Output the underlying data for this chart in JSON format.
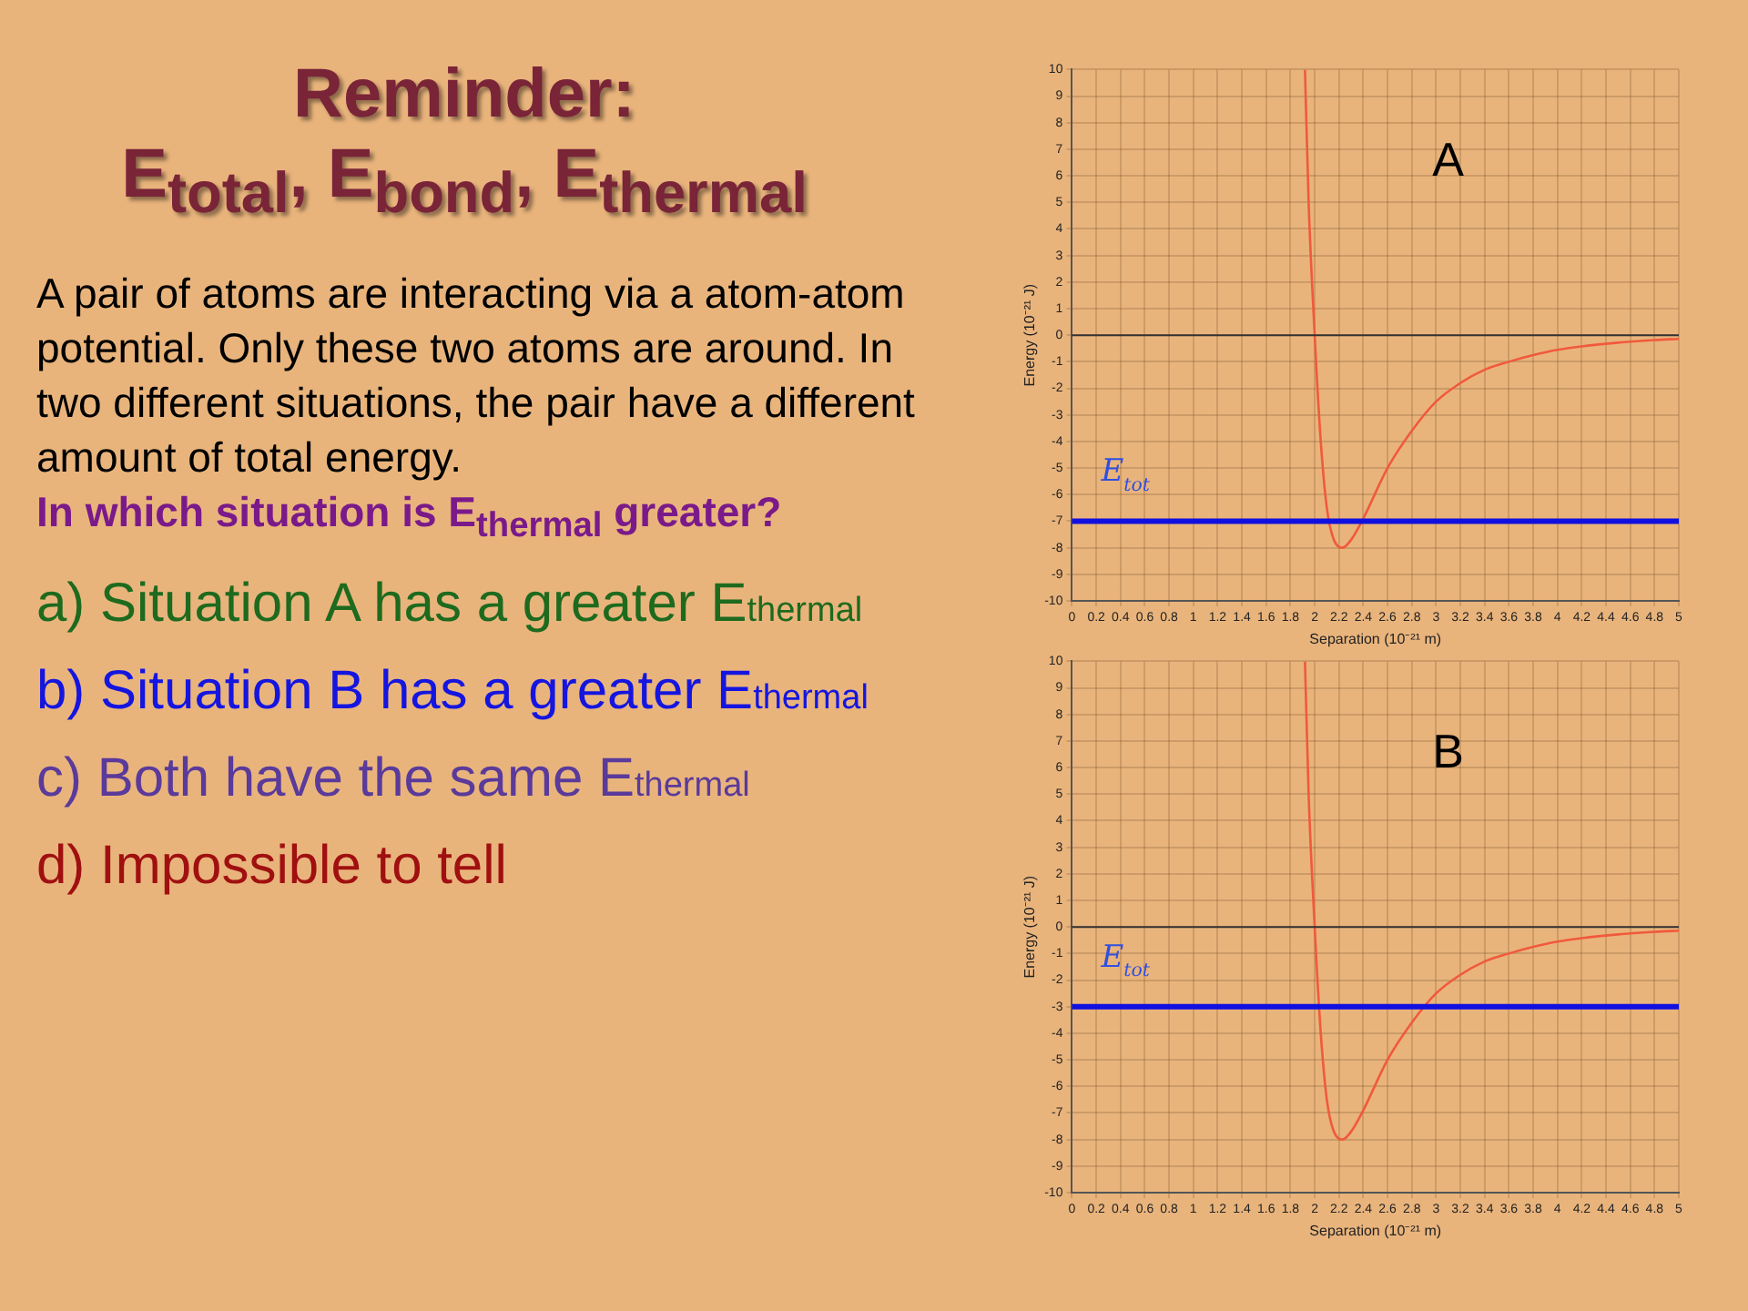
{
  "chart_data": [
    {
      "type": "other",
      "title": "Reminder: E$_{total}$, E$_{bond}$, E$_{thermal}$",
      "annotations": [
        "A pair of atoms are interacting via a atom-atom potential. Only these two atoms are around. In two different situations, the pair have a different amount of total energy.",
        "In which situation is E$_{thermal}$ greater?",
        "a) Situation A has a greater E$_{thermal}$",
        "b) Situation B has a greater E$_{thermal}$",
        "c) Both have the same E$_{thermal}$",
        "d) Impossible to tell"
      ]
    },
    {
      "type": "line",
      "xlabel": "Separation (10⁻²¹ m)",
      "ylabel": "Energy (10⁻²¹ J)",
      "annotations": [
        "A"
      ],
      "x": [
        1.92,
        1.95,
        2.0,
        2.05,
        2.1,
        2.15,
        2.23,
        2.3,
        2.4,
        2.6,
        2.8,
        3.0,
        3.2,
        3.4,
        3.6,
        3.8,
        4.0,
        4.2,
        4.5,
        4.8,
        5.0
      ],
      "series": [
        {
          "color": "#f05a3c",
          "values": [
            10,
            5,
            0,
            -4,
            -6.5,
            -7.6,
            -8,
            -7.7,
            -6.9,
            -5,
            -3.6,
            -2.5,
            -1.8,
            -1.3,
            -1.0,
            -0.75,
            -0.55,
            -0.42,
            -0.28,
            -0.18,
            -0.14
          ]
        }
      ],
      "xlim": [
        0,
        5
      ],
      "xticks": [
        0,
        0.2,
        0.4,
        0.6,
        0.8,
        1,
        1.2,
        1.4,
        1.6,
        1.8,
        2,
        2.2,
        2.4,
        2.6,
        2.8,
        3,
        3.2,
        3.4,
        3.6,
        3.8,
        4,
        4.2,
        4.4,
        4.6,
        4.8,
        5
      ],
      "ylim": [
        -10,
        10
      ],
      "yticks": [
        -10,
        -9,
        -8,
        -7,
        -6,
        -5,
        -4,
        -3,
        -2,
        -1,
        0,
        1,
        2,
        3,
        4,
        5,
        6,
        7,
        8,
        9,
        10
      ],
      "ref_lines": [
        {
          "axis": "y",
          "value": 0,
          "color": "#333333"
        },
        {
          "axis": "y",
          "value": -7,
          "label": "E$_{tot}$",
          "color": "#1010e0"
        }
      ],
      "grid": true,
      "legend": false,
      "marker": "none",
      "line_style": "solid"
    },
    {
      "type": "line",
      "xlabel": "Separation (10⁻²¹ m)",
      "ylabel": "Energy (10⁻²¹ J)",
      "annotations": [
        "B"
      ],
      "x": [
        1.92,
        1.95,
        2.0,
        2.05,
        2.1,
        2.15,
        2.23,
        2.3,
        2.4,
        2.6,
        2.8,
        3.0,
        3.2,
        3.4,
        3.6,
        3.8,
        4.0,
        4.2,
        4.5,
        4.8,
        5.0
      ],
      "series": [
        {
          "color": "#f05a3c",
          "values": [
            10,
            5,
            0,
            -4,
            -6.5,
            -7.6,
            -8,
            -7.7,
            -6.9,
            -5,
            -3.6,
            -2.5,
            -1.8,
            -1.3,
            -1.0,
            -0.75,
            -0.55,
            -0.42,
            -0.28,
            -0.18,
            -0.14
          ]
        }
      ],
      "xlim": [
        0,
        5
      ],
      "xticks": [
        0,
        0.2,
        0.4,
        0.6,
        0.8,
        1,
        1.2,
        1.4,
        1.6,
        1.8,
        2,
        2.2,
        2.4,
        2.6,
        2.8,
        3,
        3.2,
        3.4,
        3.6,
        3.8,
        4,
        4.2,
        4.4,
        4.6,
        4.8,
        5
      ],
      "ylim": [
        -10,
        10
      ],
      "yticks": [
        -10,
        -9,
        -8,
        -7,
        -6,
        -5,
        -4,
        -3,
        -2,
        -1,
        0,
        1,
        2,
        3,
        4,
        5,
        6,
        7,
        8,
        9,
        10
      ],
      "ref_lines": [
        {
          "axis": "y",
          "value": 0,
          "color": "#333333"
        },
        {
          "axis": "y",
          "value": -3,
          "label": "E$_{tot}$",
          "color": "#1010e0"
        }
      ],
      "grid": true,
      "legend": false,
      "marker": "none",
      "line_style": "solid"
    }
  ]
}
